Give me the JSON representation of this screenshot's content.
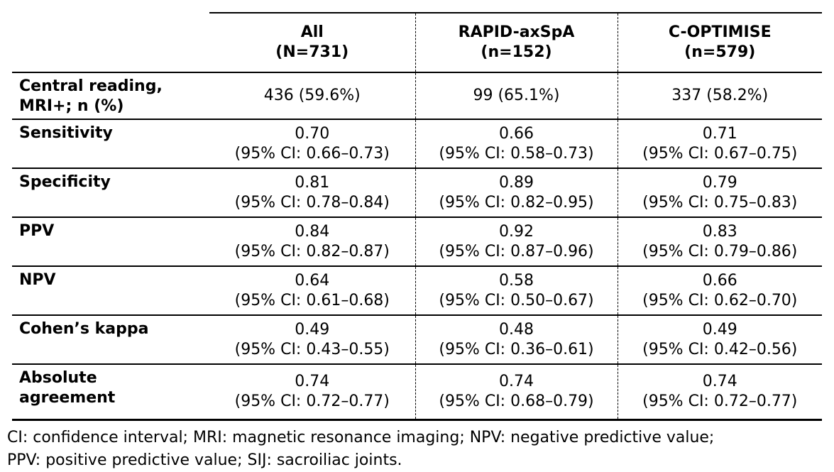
{
  "table": {
    "column_headers": [
      "All\n(N=731)",
      "RAPID-axSpA\n(n=152)",
      "C-OPTIMISE\n(n=579)"
    ],
    "rows": [
      {
        "label": "Central reading,\nMRI+; n (%)",
        "cells": [
          "436 (59.6%)",
          "99 (65.1%)",
          "337 (58.2%)"
        ]
      },
      {
        "label": "Sensitivity",
        "cells": [
          "0.70\n(95% CI: 0.66–0.73)",
          "0.66\n(95% CI: 0.58–0.73)",
          "0.71\n(95% CI: 0.67–0.75)"
        ]
      },
      {
        "label": "Specificity",
        "cells": [
          "0.81\n(95% CI: 0.78–0.84)",
          "0.89\n(95% CI: 0.82–0.95)",
          "0.79\n(95% CI: 0.75–0.83)"
        ]
      },
      {
        "label": "PPV",
        "cells": [
          "0.84\n(95% CI: 0.82–0.87)",
          "0.92\n(95% CI: 0.87–0.96)",
          "0.83\n(95% CI: 0.79–0.86)"
        ]
      },
      {
        "label": "NPV",
        "cells": [
          "0.64\n(95% CI: 0.61–0.68)",
          "0.58\n(95% CI: 0.50–0.67)",
          "0.66\n(95% CI: 0.62–0.70)"
        ]
      },
      {
        "label": "Cohen’s kappa",
        "cells": [
          "0.49\n(95% CI: 0.43–0.55)",
          "0.48\n(95% CI: 0.36–0.61)",
          "0.49\n(95% CI: 0.42–0.56)"
        ]
      },
      {
        "label": "Absolute\nagreement",
        "cells": [
          "0.74\n(95% CI: 0.72–0.77)",
          "0.74\n(95% CI: 0.68–0.79)",
          "0.74\n(95% CI: 0.72–0.77)"
        ]
      }
    ]
  },
  "footnote": {
    "line1": "CI: confidence interval; MRI: magnetic resonance imaging; NPV: negative predictive value;",
    "line2": "PPV: positive predictive value; SIJ: sacroiliac joints."
  },
  "colors": {
    "text": "#000000",
    "background": "#ffffff",
    "rule": "#000000"
  }
}
